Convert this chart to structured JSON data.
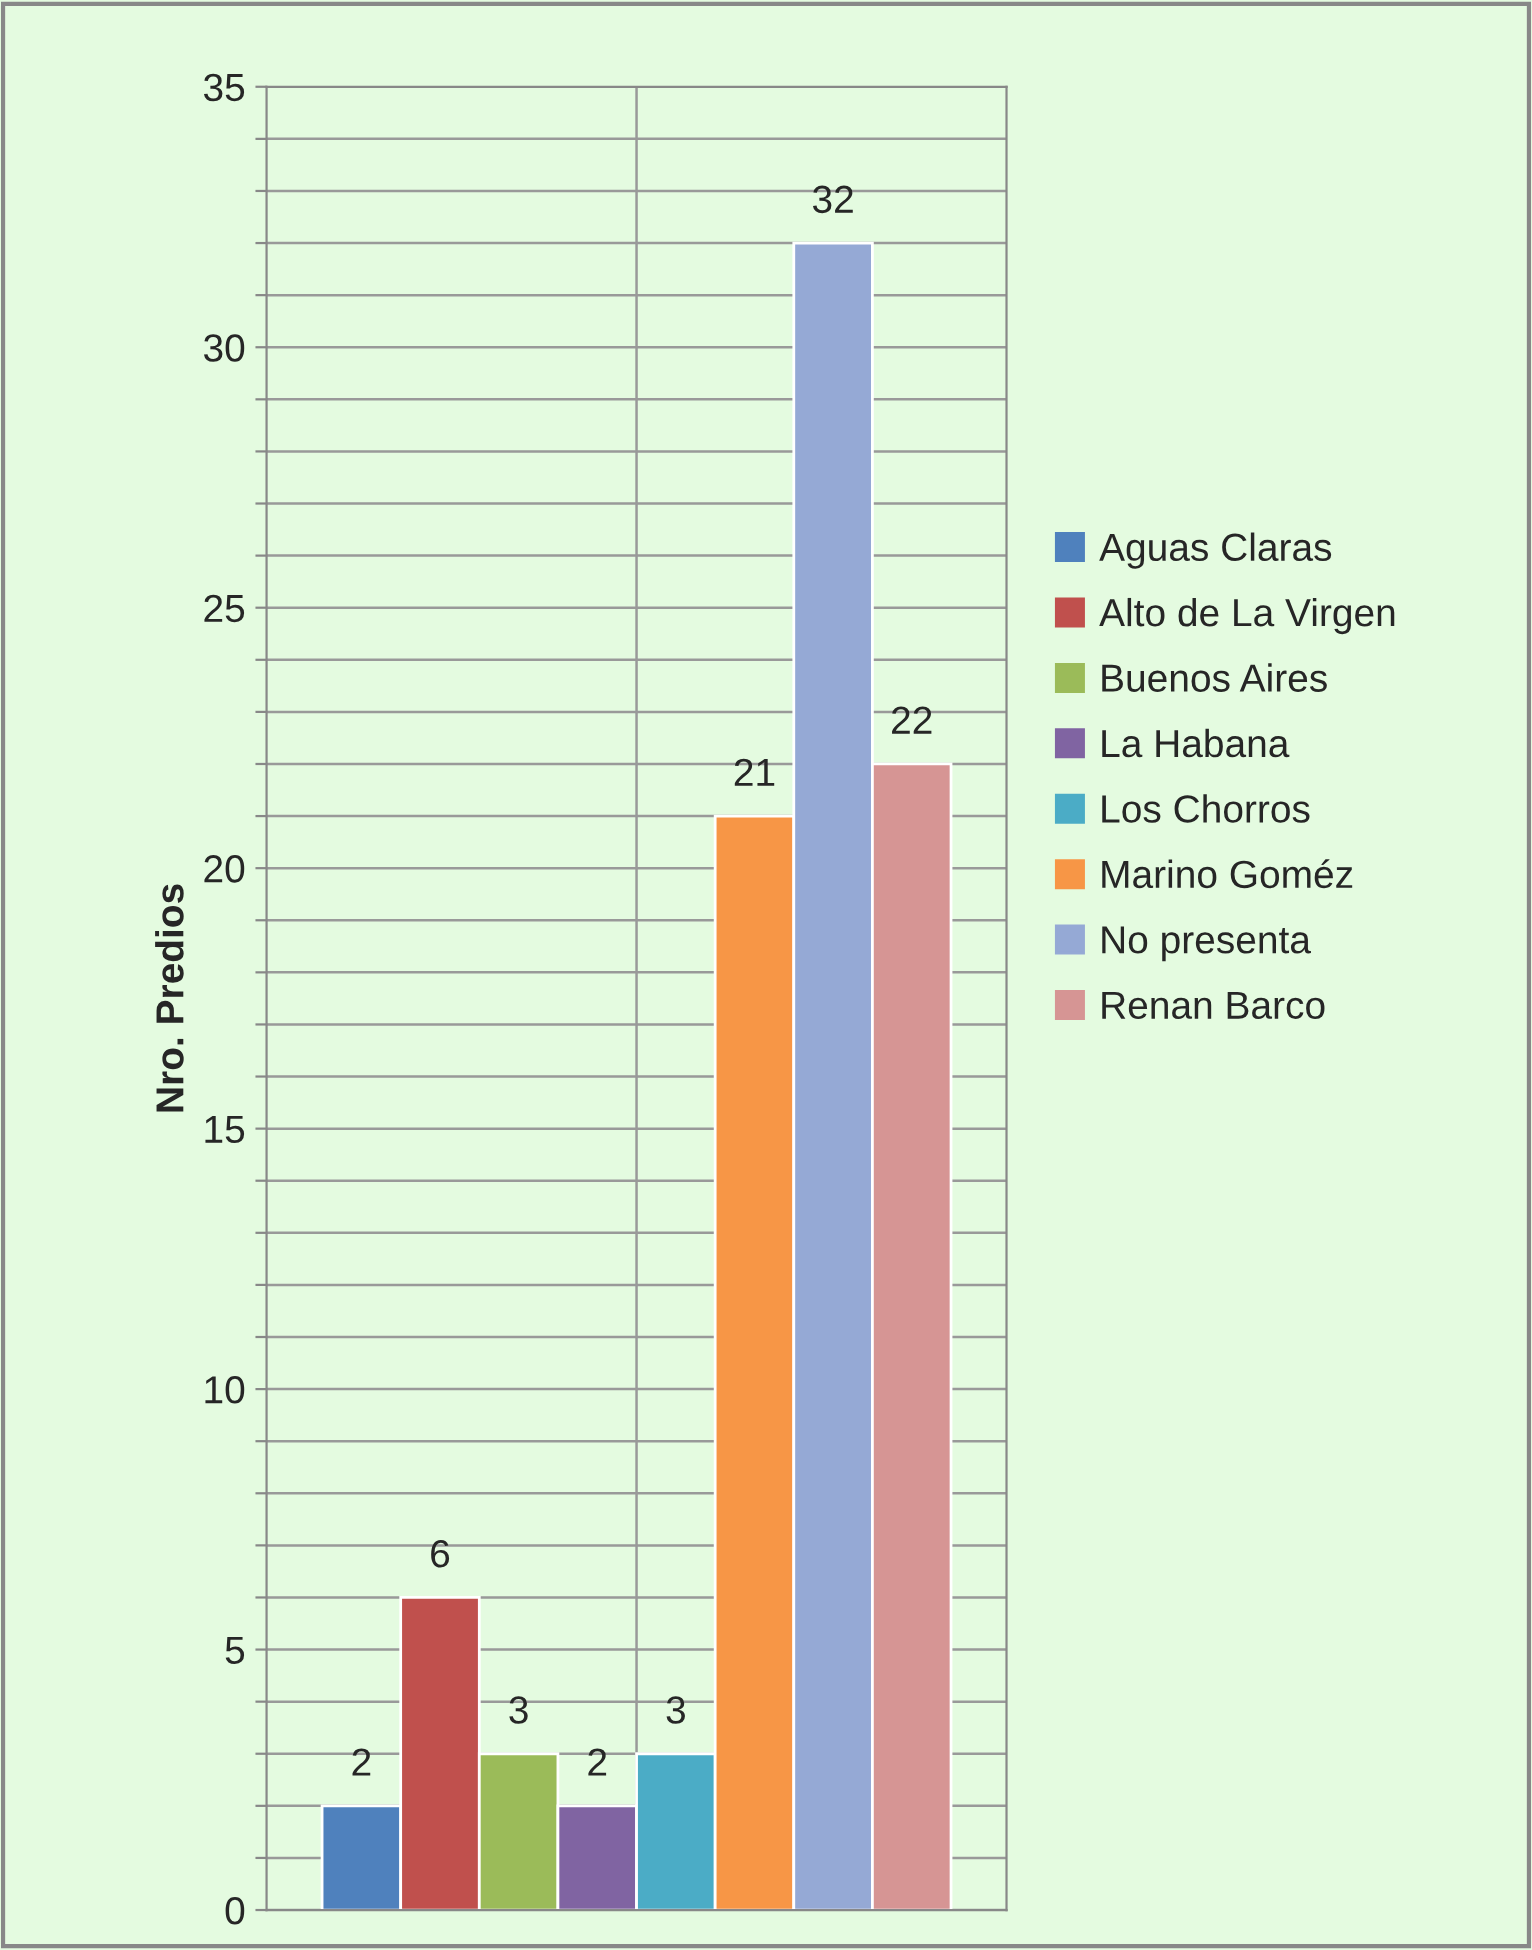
{
  "chart_data": {
    "type": "bar",
    "ylabel": "Nro. Predios",
    "categories": [
      null
    ],
    "series": [
      {
        "name": "Aguas Claras",
        "color": "#4f81bd",
        "values": [
          2
        ]
      },
      {
        "name": "Alto de La Virgen",
        "color": "#c0504d",
        "values": [
          6
        ]
      },
      {
        "name": "Buenos Aires",
        "color": "#9bbb59",
        "values": [
          3
        ]
      },
      {
        "name": "La Habana",
        "color": "#8064a2",
        "values": [
          2
        ]
      },
      {
        "name": "Los Chorros",
        "color": "#4bacc6",
        "values": [
          3
        ]
      },
      {
        "name": "Marino Goméz",
        "color": "#f79646",
        "values": [
          21
        ]
      },
      {
        "name": "No presenta",
        "color": "#95a9d5",
        "values": [
          32
        ]
      },
      {
        "name": "Renan Barco",
        "color": "#d69594",
        "values": [
          22
        ]
      }
    ],
    "ylim": [
      0,
      35
    ],
    "yticks": [
      0,
      {
        "value": 1,
        "label": null
      },
      {
        "value": 2,
        "label": null
      },
      {
        "value": 3,
        "label": null
      },
      {
        "value": 4,
        "label": null
      },
      5,
      {
        "value": 6,
        "label": null
      },
      {
        "value": 7,
        "label": null
      },
      {
        "value": 8,
        "label": null
      },
      {
        "value": 9,
        "label": null
      },
      10,
      {
        "value": 11,
        "label": null
      },
      {
        "value": 12,
        "label": null
      },
      {
        "value": 13,
        "label": null
      },
      {
        "value": 14,
        "label": null
      },
      15,
      {
        "value": 16,
        "label": null
      },
      {
        "value": 17,
        "label": null
      },
      {
        "value": 18,
        "label": null
      },
      {
        "value": 19,
        "label": null
      },
      20,
      {
        "value": 21,
        "label": null
      },
      {
        "value": 22,
        "label": null
      },
      {
        "value": 23,
        "label": null
      },
      {
        "value": 24,
        "label": null
      },
      25,
      {
        "value": 26,
        "label": null
      },
      {
        "value": 27,
        "label": null
      },
      {
        "value": 28,
        "label": null
      },
      {
        "value": 29,
        "label": null
      },
      30,
      {
        "value": 31,
        "label": null
      },
      {
        "value": 32,
        "label": null
      },
      {
        "value": 33,
        "label": null
      },
      {
        "value": 34,
        "label": null
      },
      35
    ],
    "grid": "y",
    "legend": "right",
    "data_labels": true,
    "tick_labels": "y"
  }
}
